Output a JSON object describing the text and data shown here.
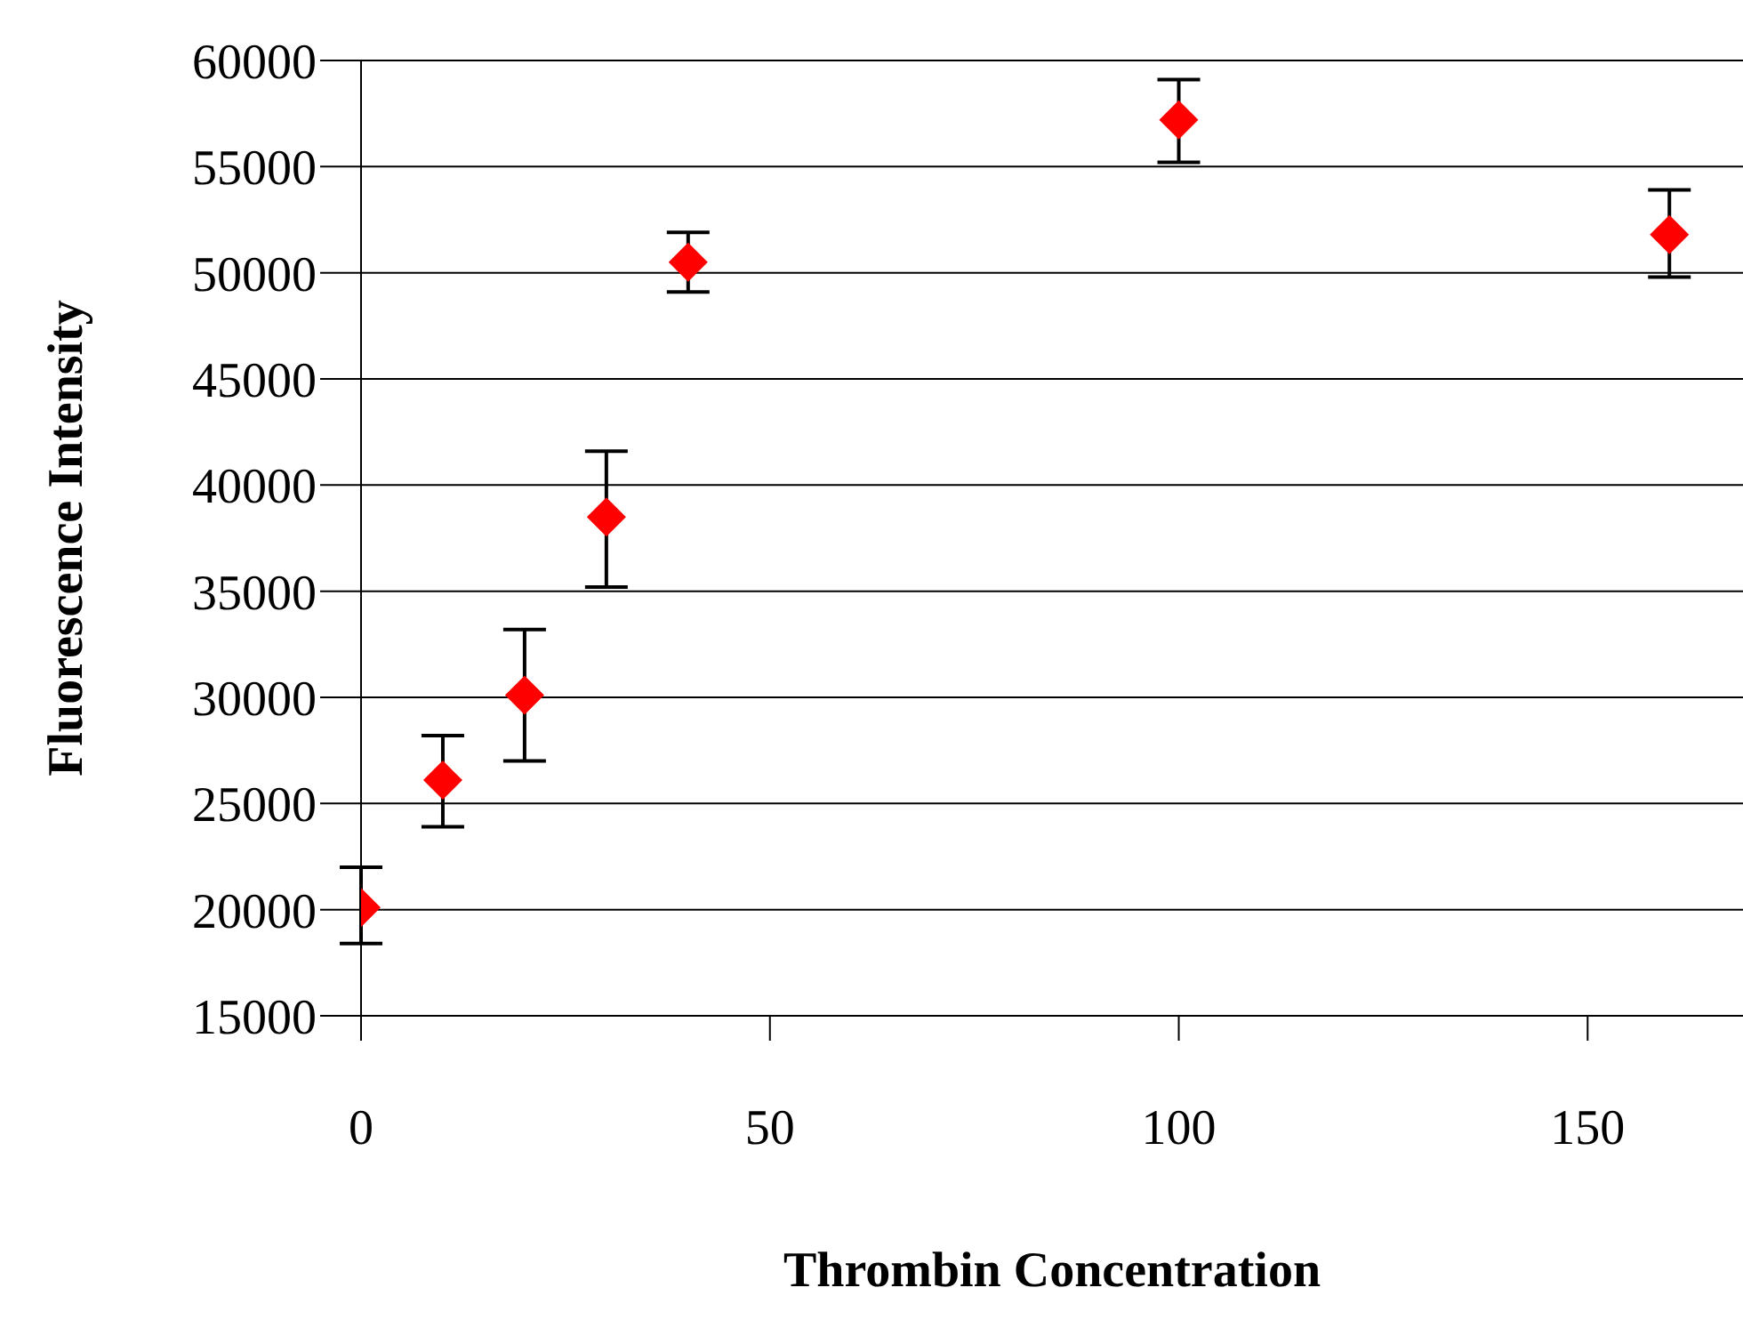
{
  "chart_data": {
    "type": "scatter",
    "xlabel": "Thrombin Concentration",
    "ylabel": "Fluorescence Intensity",
    "x": [
      0,
      10,
      20,
      30,
      40,
      100,
      160
    ],
    "values": [
      20100,
      26100,
      30100,
      38500,
      50500,
      57200,
      51800
    ],
    "errors": [
      [
        18400,
        22000
      ],
      [
        23900,
        28200
      ],
      [
        27000,
        33200
      ],
      [
        35200,
        41600
      ],
      [
        49100,
        51900
      ],
      [
        55200,
        59100
      ],
      [
        49800,
        53900
      ]
    ],
    "color": "#ff0000",
    "marker": "diamond",
    "grid": "y",
    "xlim": [
      0,
      169
    ],
    "xticks": [
      0,
      50,
      100,
      150
    ],
    "ylim": [
      15000,
      60000
    ],
    "yticks": [
      15000,
      20000,
      25000,
      30000,
      35000,
      40000,
      45000,
      50000,
      55000,
      60000
    ]
  }
}
